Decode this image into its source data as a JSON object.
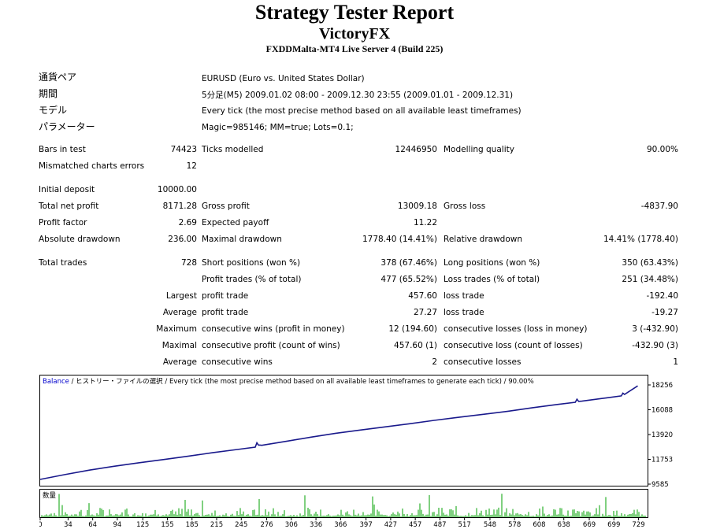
{
  "header": {
    "title": "Strategy Tester Report",
    "expert": "VictoryFX",
    "server": "FXDDMalta-MT4 Live Server 4 (Build 225)"
  },
  "info": {
    "symbol_label": "通貨ペア",
    "symbol_value": "EURUSD (Euro vs. United States Dollar)",
    "period_label": "期間",
    "period_value": "5分足(M5) 2009.01.02 08:00 - 2009.12.30 23:55 (2009.01.01 - 2009.12.31)",
    "model_label": "モデル",
    "model_value": "Every tick (the most precise method based on all available least timeframes)",
    "params_label": "パラメーター",
    "params_value": "Magic=985146; MM=true; Lots=0.1;"
  },
  "stats": {
    "bars_label": "Bars in test",
    "bars_value": "74423",
    "ticks_label": "Ticks modelled",
    "ticks_value": "12446950",
    "quality_label": "Modelling quality",
    "quality_value": "90.00%",
    "mismatch_label": "Mismatched charts errors",
    "mismatch_value": "12",
    "deposit_label": "Initial deposit",
    "deposit_value": "10000.00",
    "netprofit_label": "Total net profit",
    "netprofit_value": "8171.28",
    "grossprofit_label": "Gross profit",
    "grossprofit_value": "13009.18",
    "grossloss_label": "Gross loss",
    "grossloss_value": "-4837.90",
    "pf_label": "Profit factor",
    "pf_value": "2.69",
    "payoff_label": "Expected payoff",
    "payoff_value": "11.22",
    "absdd_label": "Absolute drawdown",
    "absdd_value": "236.00",
    "maxdd_label": "Maximal drawdown",
    "maxdd_value": "1778.40 (14.41%)",
    "reldd_label": "Relative drawdown",
    "reldd_value": "14.41% (1778.40)",
    "trades_label": "Total trades",
    "trades_value": "728",
    "short_label": "Short positions (won %)",
    "short_value": "378 (67.46%)",
    "long_label": "Long positions (won %)",
    "long_value": "350 (63.43%)",
    "pt_label": "Profit trades (% of total)",
    "pt_value": "477 (65.52%)",
    "lt_label": "Loss trades (% of total)",
    "lt_value": "251 (34.48%)",
    "largest_prefix": "Largest",
    "largest_profit_label": "profit trade",
    "largest_profit_value": "457.60",
    "largest_loss_label": "loss trade",
    "largest_loss_value": "-192.40",
    "average_prefix": "Average",
    "average_profit_label": "profit trade",
    "average_profit_value": "27.27",
    "average_loss_label": "loss trade",
    "average_loss_value": "-19.27",
    "maximum_prefix": "Maximum",
    "max_wins_label": "consecutive wins (profit in money)",
    "max_wins_value": "12 (194.60)",
    "max_losses_label": "consecutive losses (loss in money)",
    "max_losses_value": "3 (-432.90)",
    "maximal_prefix": "Maximal",
    "maximal_profit_label": "consecutive profit (count of wins)",
    "maximal_profit_value": "457.60 (1)",
    "maximal_loss_label": "consecutive loss (count of losses)",
    "maximal_loss_value": "-432.90 (3)",
    "avgc_prefix": "Average",
    "avgc_wins_label": "consecutive wins",
    "avgc_wins_value": "2",
    "avgc_losses_label": "consecutive losses",
    "avgc_losses_value": "1"
  },
  "chart_data": {
    "type": "line",
    "legend_balance": "Balance",
    "legend_rest": " / ヒストリー・ファイルの選択 / Every tick (the most precise method based on all available least timeframes to generate each tick) / 90.00%",
    "volume_label": "数量",
    "yticks": [
      "18256",
      "16088",
      "13920",
      "11753",
      "9585"
    ],
    "ylim": [
      9585,
      18256
    ],
    "xticks": [
      "0",
      "34",
      "64",
      "94",
      "125",
      "155",
      "185",
      "215",
      "245",
      "276",
      "306",
      "336",
      "366",
      "397",
      "427",
      "457",
      "487",
      "517",
      "548",
      "578",
      "608",
      "638",
      "669",
      "699",
      "729"
    ],
    "xlim": [
      0,
      740
    ],
    "series": [
      {
        "name": "Balance",
        "x": [
          0,
          30,
          60,
          90,
          120,
          150,
          180,
          210,
          240,
          262,
          264,
          266,
          268,
          270,
          300,
          330,
          360,
          390,
          420,
          450,
          480,
          510,
          540,
          570,
          600,
          630,
          652,
          654,
          656,
          660,
          690,
          708,
          710,
          712,
          728
        ],
        "y": [
          10000,
          10420,
          10810,
          11150,
          11450,
          11730,
          12020,
          12330,
          12610,
          12820,
          13200,
          13000,
          13000,
          12980,
          13330,
          13690,
          14030,
          14310,
          14590,
          14860,
          15160,
          15430,
          15690,
          15960,
          16270,
          16550,
          16740,
          17010,
          16820,
          16840,
          17130,
          17300,
          17540,
          17430,
          18171
        ]
      }
    ],
    "colors": {
      "balance": "#1a1a8c",
      "volume": "#00a000",
      "legend": "#0000cc"
    },
    "grid": false
  }
}
